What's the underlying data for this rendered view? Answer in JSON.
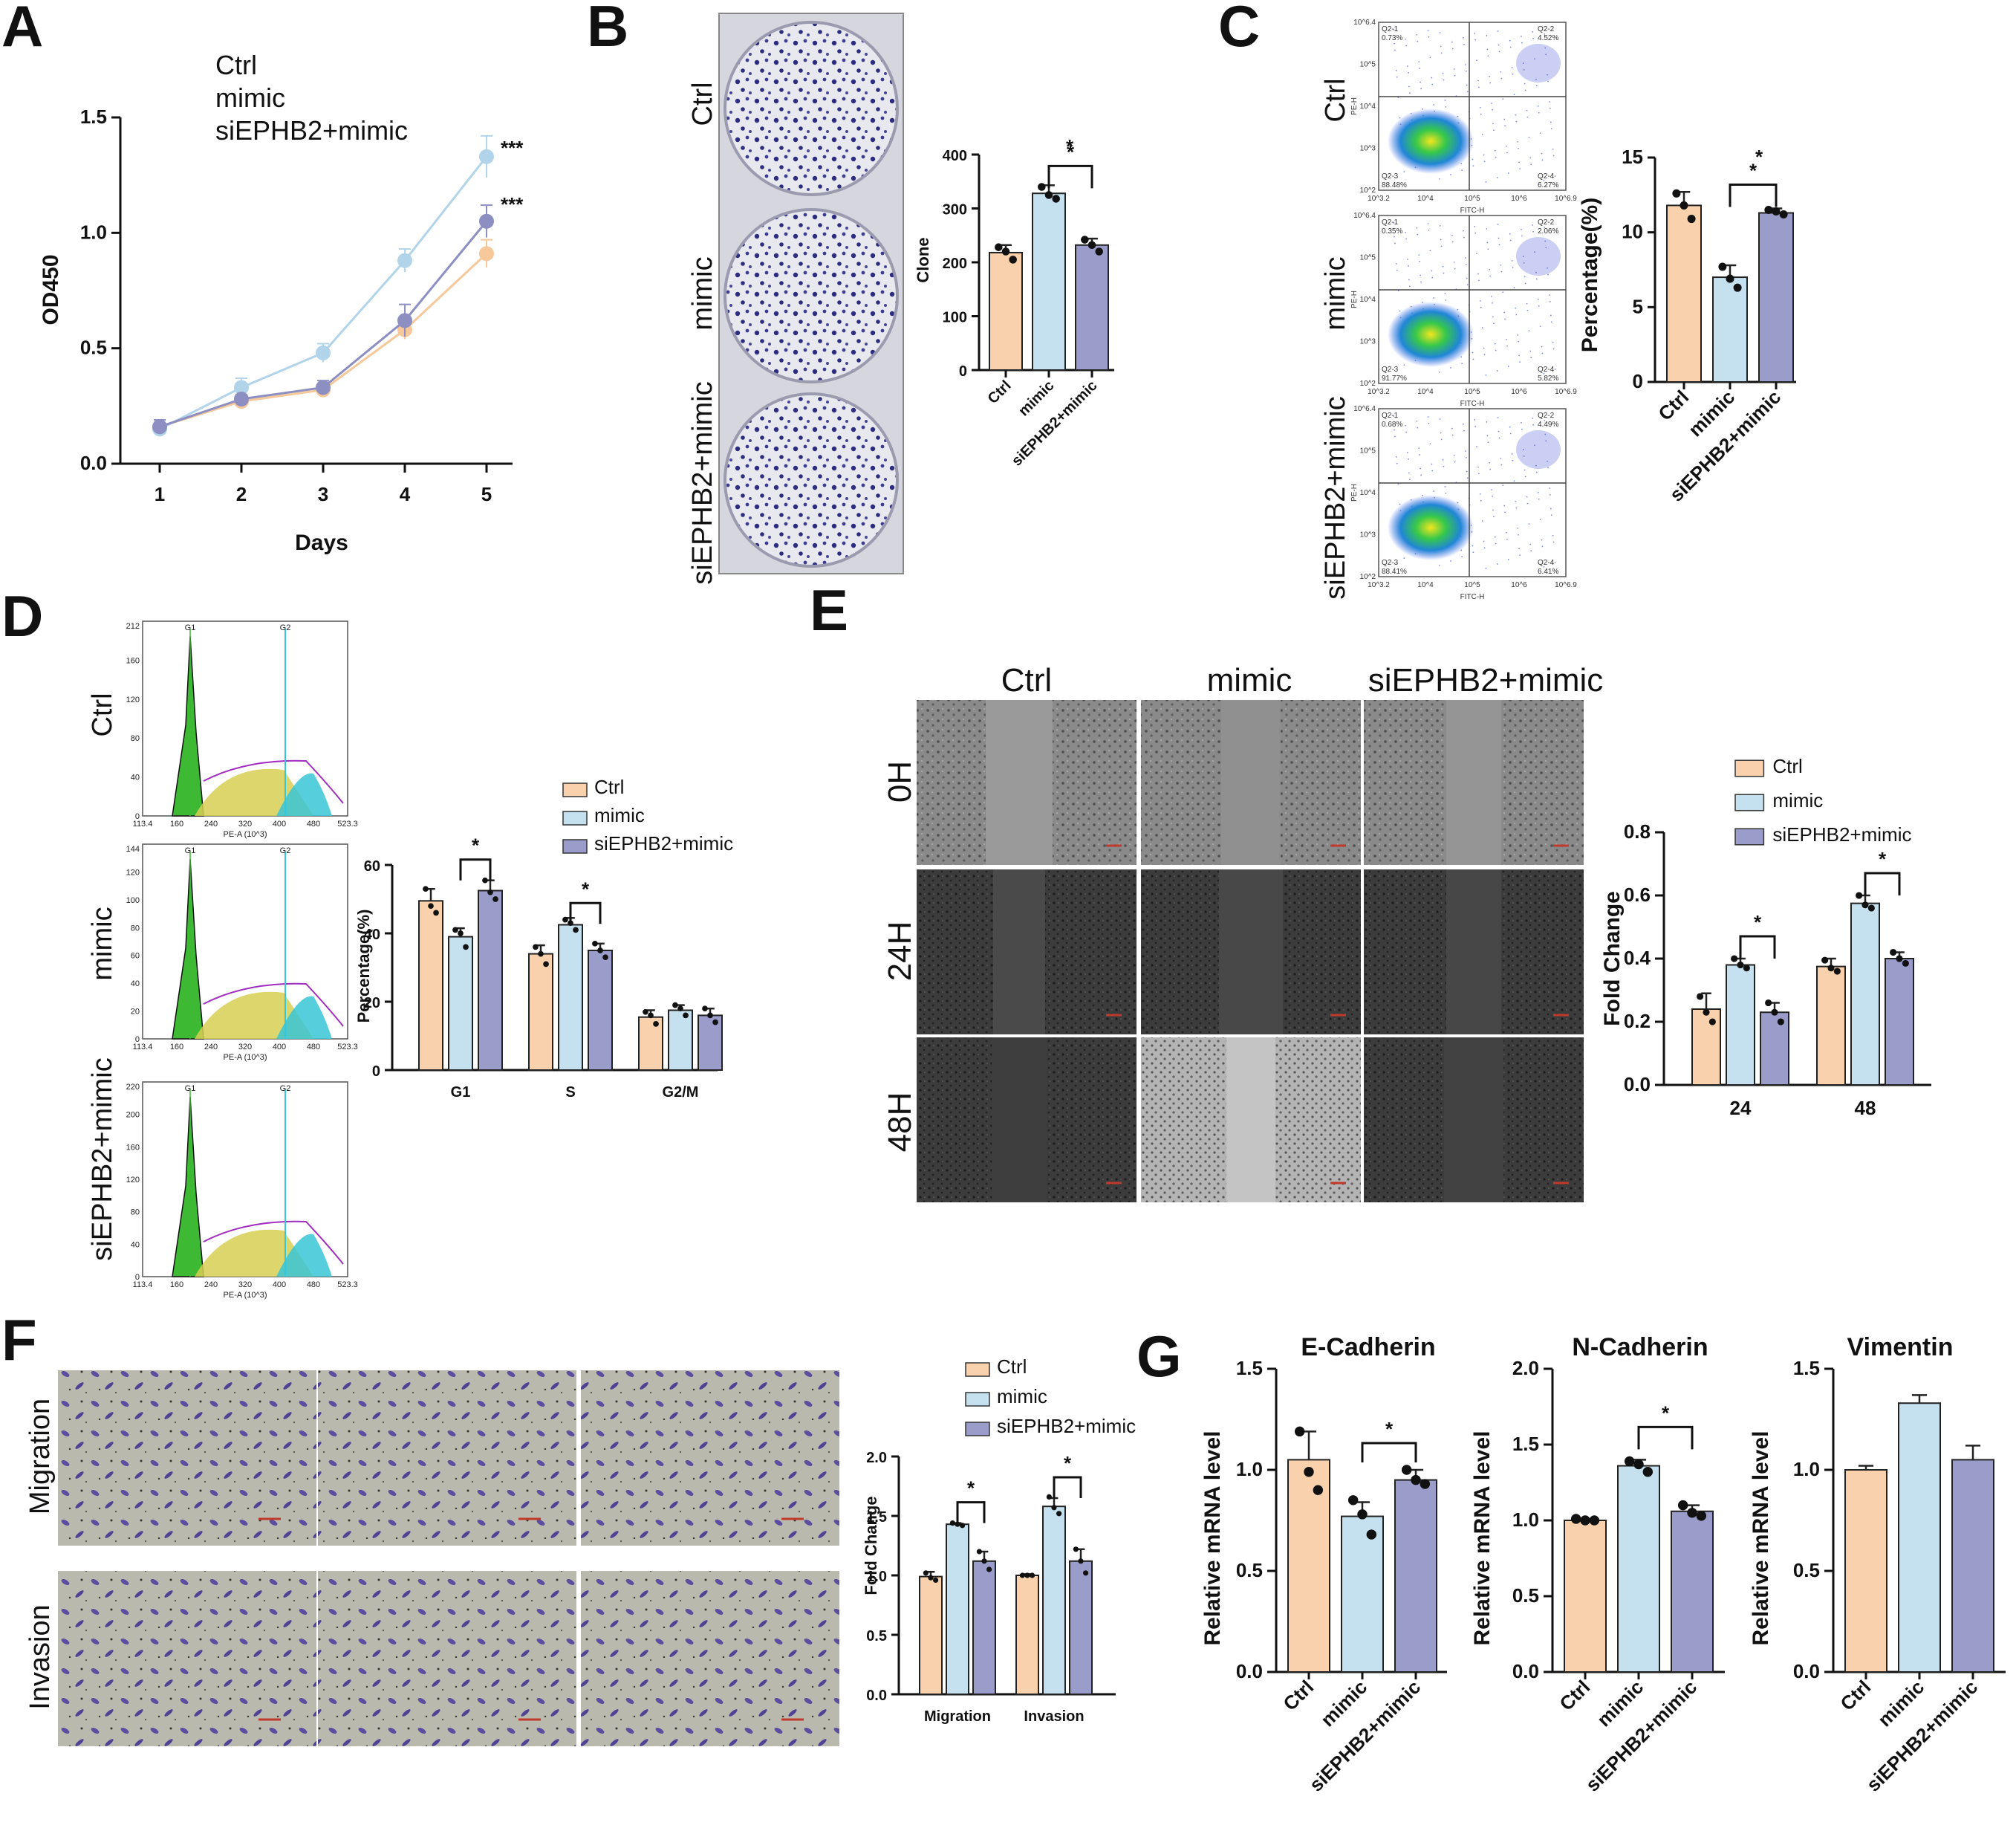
{
  "colors": {
    "ctrl": "#f9d2ad",
    "mimic": "#c5e0ee",
    "si": "#9a9cc9",
    "ctrl_dot": "#f6c89a",
    "mimic_dot": "#b2d4ea",
    "si_dot": "#8d8fc2"
  },
  "panels": {
    "A": "A",
    "B": "B",
    "C": "C",
    "D": "D",
    "E": "E",
    "F": "F",
    "G": "G"
  },
  "groups": [
    "Ctrl",
    "mimic",
    "siEPHB2+mimic"
  ],
  "panelA": {
    "legend": [
      "Ctrl",
      "mimic",
      "siEPHB2+mimic"
    ],
    "sig_mimic": "***",
    "sig_si": "***"
  },
  "panelB": {
    "rows": [
      "Ctrl",
      "mimic",
      "siEPHB2+mimic"
    ],
    "sig": "*"
  },
  "panelC": {
    "rows": [
      "Ctrl",
      "mimic",
      "siEPHB2+mimic"
    ],
    "sig": "*",
    "flow": [
      {
        "q1": "Q2-1",
        "q1v": "0.73%",
        "q2": "Q2-2",
        "q2v": "4.52%",
        "q3": "Q2-3",
        "q3v": "88.48%",
        "q4": "Q2-4",
        "q4v": "6.27%"
      },
      {
        "q1": "Q2-1",
        "q1v": "0.35%",
        "q2": "Q2-2",
        "q2v": "2.06%",
        "q3": "Q2-3",
        "q3v": "91.77%",
        "q4": "Q2-4",
        "q4v": "5.82%"
      },
      {
        "q1": "Q2-1",
        "q1v": "0.68%",
        "q2": "Q2-2",
        "q2v": "4.49%",
        "q3": "Q2-3",
        "q3v": "88.41%",
        "q4": "Q2-4",
        "q4v": "6.41%"
      }
    ],
    "xlab": "FITC-H",
    "ylab": "PE-H",
    "xticks": [
      "10^3.2",
      "10^4",
      "10^5",
      "10^6",
      "10^6.9"
    ],
    "yticks": [
      "10^2",
      "10^3",
      "10^4",
      "10^5",
      "10^6.4"
    ]
  },
  "panelD": {
    "rows": [
      "Ctrl",
      "mimic",
      "siEPHB2+mimic"
    ],
    "legend": [
      "Ctrl",
      "mimic",
      "siEPHB2+mimic"
    ],
    "sig_g1": "*",
    "sig_s": "*",
    "hist": [
      {
        "ymax": "212",
        "yt": [
          "0",
          "40",
          "80",
          "120",
          "160"
        ]
      },
      {
        "ymax": "144",
        "yt": [
          "0",
          "20",
          "40",
          "60",
          "80",
          "100",
          "120"
        ]
      },
      {
        "ymax": "220",
        "yt": [
          "0",
          "40",
          "80",
          "120",
          "160",
          "200"
        ]
      }
    ],
    "hist_x": [
      "113.4",
      "160",
      "240",
      "320",
      "400",
      "480",
      "523.3"
    ],
    "hist_xlab": "PE-A (10^3)",
    "g1": "G1",
    "g2": "G2"
  },
  "panelE": {
    "cols": [
      "Ctrl",
      "mimic",
      "siEPHB2+mimic"
    ],
    "rows": [
      "0H",
      "24H",
      "48H"
    ],
    "legend": [
      "Ctrl",
      "mimic",
      "siEPHB2+mimic"
    ],
    "sig_24": "*",
    "sig_48": "*"
  },
  "panelF": {
    "rows": [
      "Migration",
      "Invasion"
    ],
    "legend": [
      "Ctrl",
      "mimic",
      "siEPHB2+mimic"
    ],
    "sig_m": "*",
    "sig_i": "*"
  },
  "panelG": {
    "sig_e": "*",
    "sig_n": "*"
  },
  "chart_data": [
    {
      "panel": "A",
      "type": "line",
      "xlabel": "Days",
      "ylabel": "OD450",
      "x": [
        1,
        2,
        3,
        4,
        5
      ],
      "ylim": [
        0,
        1.5
      ],
      "yticks": [
        0.0,
        0.5,
        1.0,
        1.5
      ],
      "series": [
        {
          "name": "Ctrl",
          "values": [
            0.16,
            0.27,
            0.32,
            0.58,
            0.91
          ],
          "err": [
            0.03,
            0.02,
            0.02,
            0.04,
            0.06
          ]
        },
        {
          "name": "mimic",
          "values": [
            0.15,
            0.33,
            0.48,
            0.88,
            1.33
          ],
          "err": [
            0.03,
            0.04,
            0.04,
            0.05,
            0.09
          ]
        },
        {
          "name": "siEPHB2+mimic",
          "values": [
            0.16,
            0.28,
            0.33,
            0.62,
            1.05
          ],
          "err": [
            0.03,
            0.02,
            0.03,
            0.07,
            0.07
          ]
        }
      ]
    },
    {
      "panel": "B",
      "type": "bar",
      "ylabel": "Clone",
      "categories": [
        "Ctrl",
        "mimic",
        "siEPHB2+mimic"
      ],
      "ylim": [
        0,
        400
      ],
      "yticks": [
        0,
        100,
        200,
        300,
        400
      ],
      "values": [
        218,
        328,
        232
      ],
      "err": [
        14,
        15,
        12
      ],
      "points": [
        [
          228,
          220,
          205
        ],
        [
          340,
          325,
          318
        ],
        [
          242,
          232,
          220
        ]
      ]
    },
    {
      "panel": "C",
      "type": "bar",
      "ylabel": "Percentage(%)",
      "categories": [
        "Ctrl",
        "mimic",
        "siEPHB2+mimic"
      ],
      "ylim": [
        0,
        15
      ],
      "yticks": [
        0,
        5,
        10,
        15
      ],
      "values": [
        11.8,
        7.0,
        11.3
      ],
      "err": [
        0.9,
        0.8,
        0.3
      ],
      "points": [
        [
          12.6,
          11.8,
          10.9
        ],
        [
          7.7,
          6.9,
          6.3
        ],
        [
          11.5,
          11.4,
          11.2
        ]
      ]
    },
    {
      "panel": "D",
      "type": "bar",
      "ylabel": "Percentage(%)",
      "categories": [
        "G1",
        "S",
        "G2/M"
      ],
      "ylim": [
        0,
        60
      ],
      "yticks": [
        0,
        20,
        40,
        60
      ],
      "series": [
        {
          "name": "Ctrl",
          "values": [
            49.5,
            34,
            15.5
          ],
          "err": [
            3.5,
            2.5,
            2
          ],
          "points": [
            [
              53,
              48,
              46
            ],
            [
              36,
              34,
              31
            ],
            [
              17,
              16,
              13.5
            ]
          ]
        },
        {
          "name": "mimic",
          "values": [
            39,
            42.5,
            17.5
          ],
          "err": [
            2.5,
            2,
            1.5
          ],
          "points": [
            [
              41,
              40,
              36
            ],
            [
              44,
              43,
              41
            ],
            [
              19,
              18,
              16
            ]
          ]
        },
        {
          "name": "siEPHB2+mimic",
          "values": [
            52.5,
            35,
            16
          ],
          "err": [
            3,
            2,
            2
          ],
          "points": [
            [
              55.5,
              52,
              50
            ],
            [
              37,
              35,
              33
            ],
            [
              18,
              16,
              14
            ]
          ]
        }
      ]
    },
    {
      "panel": "E",
      "type": "bar",
      "ylabel": "Fold Change",
      "categories": [
        "24",
        "48"
      ],
      "ylim": [
        0,
        0.8
      ],
      "yticks": [
        0.0,
        0.2,
        0.4,
        0.6,
        0.8
      ],
      "series": [
        {
          "name": "Ctrl",
          "values": [
            0.24,
            0.375
          ],
          "err": [
            0.05,
            0.025
          ],
          "points": [
            [
              0.28,
              0.23,
              0.2
            ],
            [
              0.395,
              0.37,
              0.36
            ]
          ]
        },
        {
          "name": "mimic",
          "values": [
            0.38,
            0.575
          ],
          "err": [
            0.02,
            0.025
          ],
          "points": [
            [
              0.4,
              0.38,
              0.37
            ],
            [
              0.6,
              0.57,
              0.56
            ]
          ]
        },
        {
          "name": "siEPHB2+mimic",
          "values": [
            0.23,
            0.4
          ],
          "err": [
            0.03,
            0.02
          ],
          "points": [
            [
              0.26,
              0.23,
              0.2
            ],
            [
              0.42,
              0.4,
              0.385
            ]
          ]
        }
      ]
    },
    {
      "panel": "F",
      "type": "bar",
      "ylabel": "Fold Change",
      "categories": [
        "Migration",
        "Invasion"
      ],
      "ylim": [
        0,
        2.0
      ],
      "yticks": [
        0.0,
        0.5,
        1.0,
        1.5,
        2.0
      ],
      "series": [
        {
          "name": "Ctrl",
          "values": [
            0.99,
            1.0
          ],
          "err": [
            0.04,
            0.01
          ],
          "points": [
            [
              1.02,
              0.98,
              0.96
            ],
            [
              1.0,
              1.0,
              1.0
            ]
          ]
        },
        {
          "name": "mimic",
          "values": [
            1.43,
            1.58
          ],
          "err": [
            0.01,
            0.07
          ],
          "points": [
            [
              1.44,
              1.43,
              1.42
            ],
            [
              1.66,
              1.57,
              1.52
            ]
          ]
        },
        {
          "name": "siEPHB2+mimic",
          "values": [
            1.12,
            1.12
          ],
          "err": [
            0.08,
            0.1
          ],
          "points": [
            [
              1.2,
              1.12,
              1.05
            ],
            [
              1.22,
              1.12,
              1.02
            ]
          ]
        }
      ]
    },
    {
      "panel": "G1",
      "type": "bar",
      "title": "E-Cadherin",
      "ylabel": "Relative mRNA level",
      "categories": [
        "Ctrl",
        "mimic",
        "siEPHB2+mimic"
      ],
      "ylim": [
        0,
        1.5
      ],
      "yticks": [
        0.0,
        0.5,
        1.0,
        1.5
      ],
      "values": [
        1.05,
        0.77,
        0.95
      ],
      "err": [
        0.14,
        0.07,
        0.05
      ],
      "points": [
        [
          1.19,
          0.99,
          0.9
        ],
        [
          0.85,
          0.78,
          0.68
        ],
        [
          1.0,
          0.95,
          0.93
        ]
      ]
    },
    {
      "panel": "G2",
      "type": "bar",
      "title": "N-Cadherin",
      "ylabel": "Relative mRNA level",
      "categories": [
        "Ctrl",
        "mimic",
        "siEPHB2+mimic"
      ],
      "ylim": [
        0,
        2.0
      ],
      "yticks": [
        0.0,
        0.5,
        1.0,
        1.5,
        2.0
      ],
      "values": [
        1.0,
        1.36,
        1.06
      ],
      "err": [
        0.01,
        0.04,
        0.04
      ],
      "points": [
        [
          1.01,
          1.0,
          1.0
        ],
        [
          1.39,
          1.37,
          1.32
        ],
        [
          1.1,
          1.05,
          1.03
        ]
      ]
    },
    {
      "panel": "G3",
      "type": "bar",
      "title": "Vimentin",
      "ylabel": "Relative mRNA level",
      "categories": [
        "Ctrl",
        "mimic",
        "siEPHB2+mimic"
      ],
      "ylim": [
        0,
        1.5
      ],
      "yticks": [
        0.0,
        0.5,
        1.0,
        1.5
      ],
      "values": [
        1.0,
        1.33,
        1.05
      ],
      "err": [
        0.02,
        0.04,
        0.07
      ],
      "points": []
    }
  ]
}
